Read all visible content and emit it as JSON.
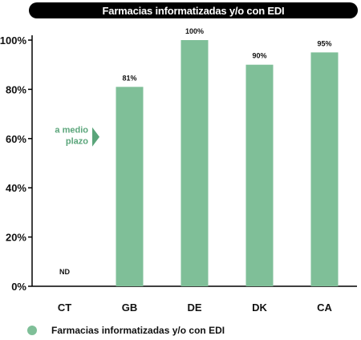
{
  "chart_data": {
    "type": "bar",
    "title": "Farmacias informatizadas y/o con EDI",
    "categories": [
      "CT",
      "GB",
      "DE",
      "DK",
      "CA"
    ],
    "series": [
      {
        "name": "Farmacias informatizadas y/o con EDI",
        "values": [
          null,
          81,
          100,
          90,
          95
        ],
        "value_labels": [
          "ND",
          "81%",
          "100%",
          "90%",
          "95%"
        ],
        "color": "#7fbf98"
      }
    ],
    "yticks": [
      "0%",
      "20%",
      "40%",
      "60%",
      "80%",
      "100%"
    ],
    "ylim": [
      0,
      100
    ],
    "annotation": {
      "line1": "a medio",
      "line2": "plazo",
      "y_value": 61,
      "color": "#5aa57a"
    },
    "legend_position": "bottom-left",
    "grid": false
  }
}
